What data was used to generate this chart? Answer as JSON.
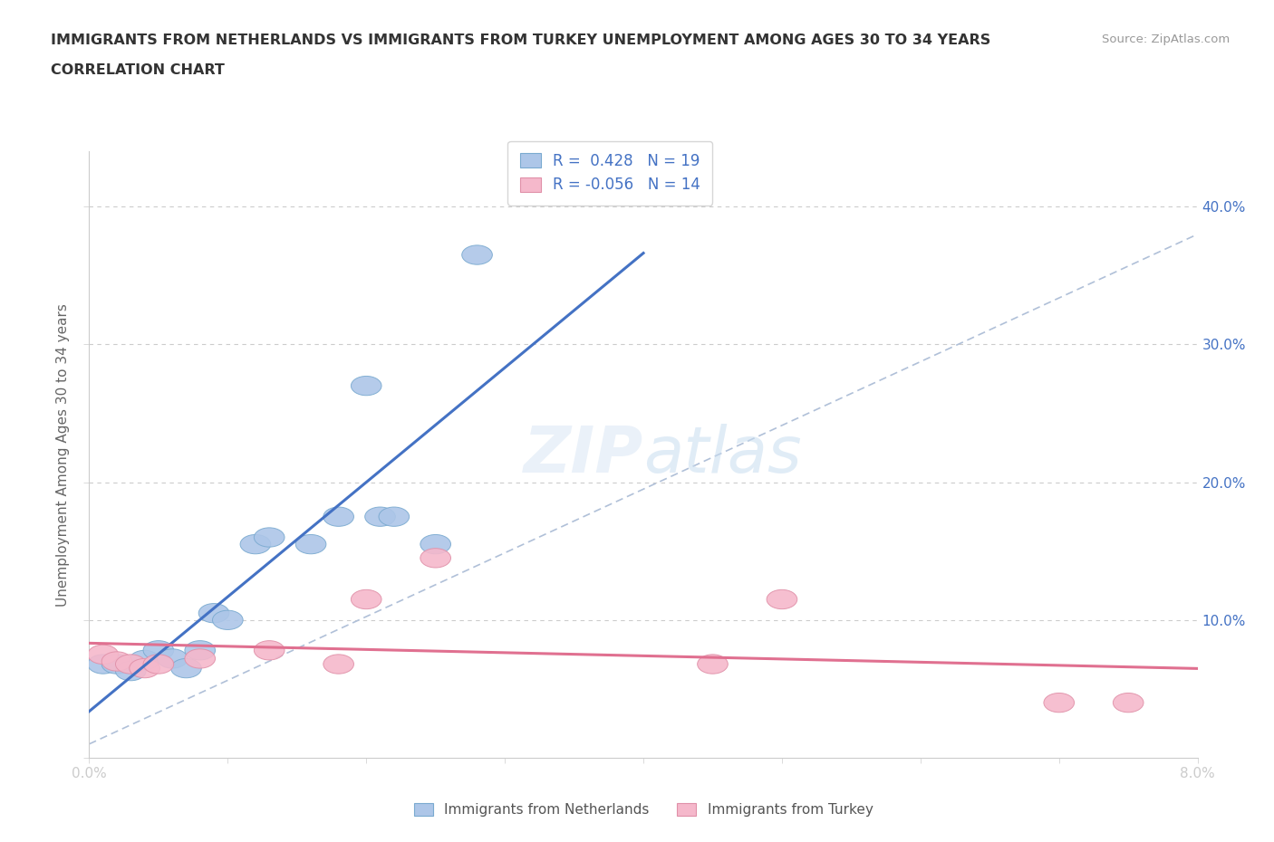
{
  "title_line1": "IMMIGRANTS FROM NETHERLANDS VS IMMIGRANTS FROM TURKEY UNEMPLOYMENT AMONG AGES 30 TO 34 YEARS",
  "title_line2": "CORRELATION CHART",
  "source": "Source: ZipAtlas.com",
  "ylabel": "Unemployment Among Ages 30 to 34 years",
  "xlim": [
    0.0,
    0.08
  ],
  "ylim": [
    0.0,
    0.44
  ],
  "x_ticks": [
    0.0,
    0.01,
    0.02,
    0.03,
    0.04,
    0.05,
    0.06,
    0.07,
    0.08
  ],
  "x_tick_labels": [
    "0.0%",
    "",
    "",
    "",
    "",
    "",
    "",
    "",
    "8.0%"
  ],
  "y_ticks": [
    0.0,
    0.1,
    0.2,
    0.3,
    0.4
  ],
  "right_y_tick_labels": [
    "",
    "10.0%",
    "20.0%",
    "30.0%",
    "40.0%"
  ],
  "netherlands_R": 0.428,
  "netherlands_N": 19,
  "turkey_R": -0.056,
  "turkey_N": 14,
  "netherlands_color": "#adc6e8",
  "netherlands_edge_color": "#7aaad0",
  "turkey_color": "#f5b8cb",
  "turkey_edge_color": "#e090a8",
  "trendline_color_nl": "#4472c4",
  "trendline_color_tr": "#e07090",
  "dashed_line_color": "#b0c0d8",
  "watermark": "ZIPatlas",
  "nl_x": [
    0.001,
    0.002,
    0.003,
    0.004,
    0.005,
    0.006,
    0.007,
    0.008,
    0.009,
    0.01,
    0.012,
    0.013,
    0.016,
    0.018,
    0.02,
    0.021,
    0.022,
    0.025,
    0.028
  ],
  "nl_y": [
    0.068,
    0.068,
    0.063,
    0.071,
    0.078,
    0.072,
    0.065,
    0.078,
    0.105,
    0.1,
    0.155,
    0.16,
    0.155,
    0.175,
    0.27,
    0.175,
    0.175,
    0.155,
    0.365
  ],
  "tr_x": [
    0.001,
    0.002,
    0.003,
    0.004,
    0.005,
    0.008,
    0.013,
    0.018,
    0.02,
    0.025,
    0.045,
    0.05,
    0.07,
    0.075
  ],
  "tr_y": [
    0.075,
    0.07,
    0.068,
    0.065,
    0.068,
    0.072,
    0.078,
    0.068,
    0.115,
    0.145,
    0.068,
    0.115,
    0.04,
    0.04
  ],
  "background_color": "#ffffff",
  "grid_color": "#cccccc"
}
